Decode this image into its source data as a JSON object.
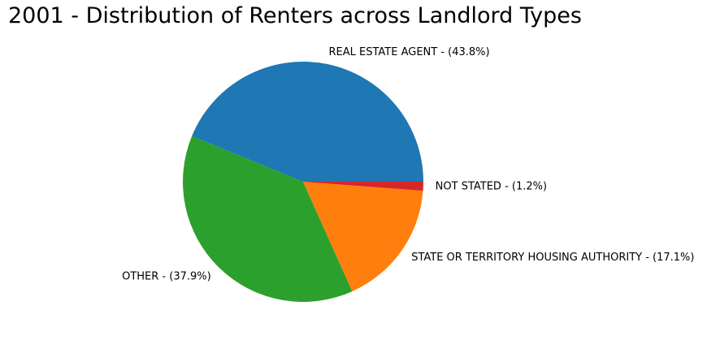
{
  "chart_data": {
    "type": "pie",
    "title": "2001 - Distribution of Renters across Landlord Types",
    "slices": [
      {
        "label": "REAL ESTATE AGENT - (43.8%)",
        "value": 43.8,
        "color": "#1f77b4"
      },
      {
        "label": "OTHER - (37.9%)",
        "value": 37.9,
        "color": "#2ca02c"
      },
      {
        "label": "STATE OR TERRITORY HOUSING AUTHORITY - (17.1%)",
        "value": 17.1,
        "color": "#ff7f0e"
      },
      {
        "label": "NOT STATED - (1.2%)",
        "value": 1.2,
        "color": "#d62728"
      }
    ],
    "start_angle": 0,
    "direction": "counterclockwise",
    "legend": "none"
  }
}
